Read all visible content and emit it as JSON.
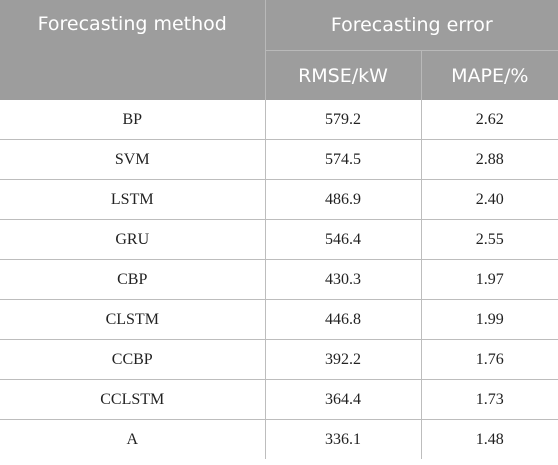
{
  "table": {
    "headers": {
      "method": "Forecasting method",
      "error_group": "Forecasting error",
      "rmse": "RMSE/kW",
      "mape": "MAPE/%"
    },
    "rows": [
      {
        "method": "BP",
        "rmse": "579.2",
        "mape": "2.62"
      },
      {
        "method": "SVM",
        "rmse": "574.5",
        "mape": "2.88"
      },
      {
        "method": "LSTM",
        "rmse": "486.9",
        "mape": "2.40"
      },
      {
        "method": "GRU",
        "rmse": "546.4",
        "mape": "2.55"
      },
      {
        "method": "CBP",
        "rmse": "430.3",
        "mape": "1.97"
      },
      {
        "method": "CLSTM",
        "rmse": "446.8",
        "mape": "1.99"
      },
      {
        "method": "CCBP",
        "rmse": "392.2",
        "mape": "1.76"
      },
      {
        "method": "CCLSTM",
        "rmse": "364.4",
        "mape": "1.73"
      },
      {
        "method": "A",
        "rmse": "336.1",
        "mape": "1.48"
      }
    ]
  },
  "colors": {
    "header_background": "#9d9d9d",
    "header_text": "#ffffff",
    "grid_line": "#bdbdbd",
    "body_text": "#222222"
  }
}
